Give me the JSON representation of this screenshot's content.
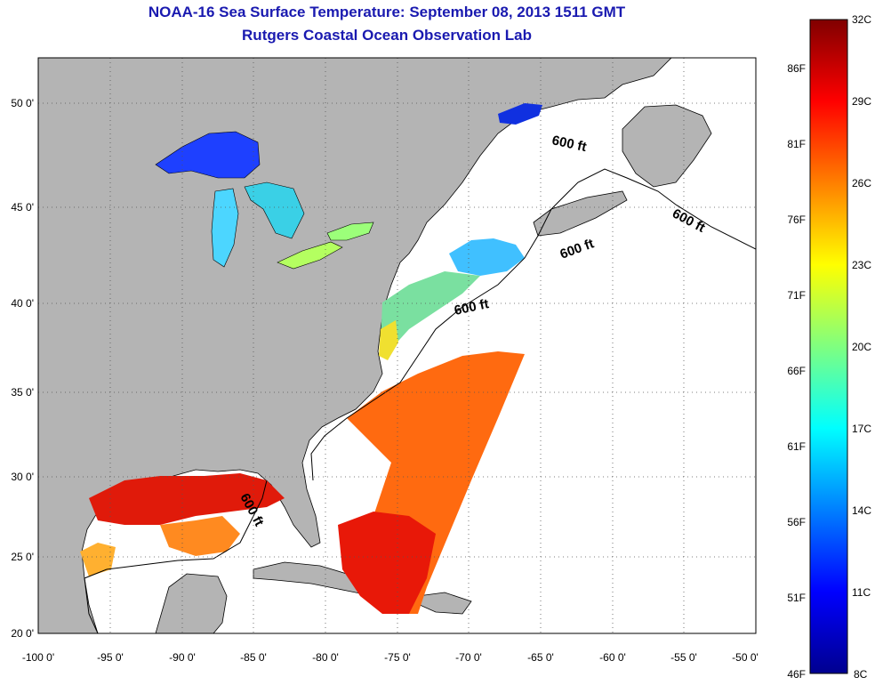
{
  "title": {
    "line1": "NOAA-16 Sea Surface Temperature:  September 08, 2013 1511 GMT",
    "line2": "Rutgers Coastal Ocean Observation Lab"
  },
  "map": {
    "lon_range": [
      -100,
      -50
    ],
    "lat_range": [
      20,
      52
    ],
    "lon_ticks": [
      "-100 0'",
      "-95 0'",
      "-90 0'",
      "-85 0'",
      "-80 0'",
      "-75 0'",
      "-70 0'",
      "-65 0'",
      "-60 0'",
      "-55 0'",
      "-50 0'"
    ],
    "lat_ticks": [
      "50 0'",
      "45 0'",
      "40 0'",
      "35 0'",
      "30 0'",
      "25 0'",
      "20 0'"
    ],
    "gridlines": "dotted",
    "land_color": "#b4b4b4",
    "water_no_data_color": "#ffffff",
    "isobath_labels": [
      "600 ft",
      "600 ft",
      "600 ft",
      "600 ft",
      "600 ft"
    ]
  },
  "colorbar": {
    "celsius_labels": [
      "32C",
      "29C",
      "26C",
      "23C",
      "20C",
      "17C",
      "14C",
      "11C",
      "8C"
    ],
    "fahrenheit_labels": [
      "86F",
      "81F",
      "76F",
      "71F",
      "66F",
      "61F",
      "56F",
      "51F",
      "46F"
    ],
    "range_c": [
      8,
      32
    ],
    "colormap": "jet"
  }
}
